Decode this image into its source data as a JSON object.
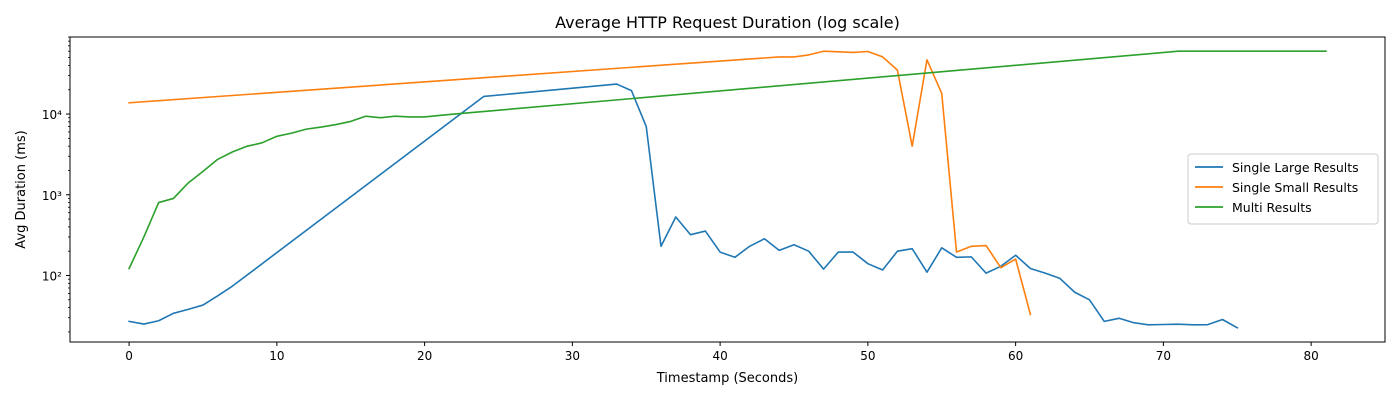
{
  "chart_data": {
    "type": "line",
    "title": "Average HTTP Request Duration (log scale)",
    "xlabel": "Timestamp (Seconds)",
    "ylabel": "Avg Duration (ms)",
    "yscale": "log",
    "xlim": [
      -4,
      85
    ],
    "ylim": [
      15,
      90000
    ],
    "xticks": [
      0,
      10,
      20,
      30,
      40,
      50,
      60,
      70,
      80
    ],
    "yticks": [
      {
        "value": 100,
        "label": "10²"
      },
      {
        "value": 1000,
        "label": "10³"
      },
      {
        "value": 10000,
        "label": "10⁴"
      }
    ],
    "grid": false,
    "legend_position": "center-right",
    "series": [
      {
        "name": "Single Large Results",
        "color": "#1f77b4",
        "points": [
          [
            0,
            27
          ],
          [
            1,
            25
          ],
          [
            2,
            27.5
          ],
          [
            3,
            34
          ],
          [
            4,
            38
          ],
          [
            5,
            43
          ],
          [
            6,
            56
          ],
          [
            7,
            74
          ],
          [
            24,
            16500
          ],
          [
            33,
            23500
          ],
          [
            34,
            19500
          ],
          [
            35,
            7000
          ],
          [
            36,
            230
          ],
          [
            37,
            530
          ],
          [
            38,
            320
          ],
          [
            39,
            355
          ],
          [
            40,
            195
          ],
          [
            41,
            168
          ],
          [
            42,
            230
          ],
          [
            43,
            285
          ],
          [
            44,
            205
          ],
          [
            45,
            240
          ],
          [
            46,
            200
          ],
          [
            47,
            120
          ],
          [
            48,
            195
          ],
          [
            49,
            195
          ],
          [
            50,
            140
          ],
          [
            51,
            117
          ],
          [
            52,
            200
          ],
          [
            53,
            215
          ],
          [
            54,
            110
          ],
          [
            55,
            220
          ],
          [
            56,
            168
          ],
          [
            57,
            170
          ],
          [
            58,
            107
          ],
          [
            59,
            130
          ],
          [
            60,
            178
          ],
          [
            61,
            122
          ],
          [
            62,
            107
          ],
          [
            63,
            92
          ],
          [
            64,
            62
          ],
          [
            65,
            50
          ],
          [
            66,
            27
          ],
          [
            67,
            29.5
          ],
          [
            68,
            26
          ],
          [
            69,
            24.5
          ],
          [
            70,
            24.7
          ],
          [
            71,
            24.9
          ],
          [
            72,
            24.5
          ],
          [
            73,
            24.6
          ],
          [
            74,
            28.5
          ],
          [
            75,
            22.5
          ]
        ]
      },
      {
        "name": "Single Small Results",
        "color": "#ff7f0e",
        "points": [
          [
            0,
            13800
          ],
          [
            44,
            51000
          ],
          [
            45,
            51000
          ],
          [
            46,
            54000
          ],
          [
            47,
            60000
          ],
          [
            48,
            59000
          ],
          [
            49,
            58000
          ],
          [
            50,
            59500
          ],
          [
            51,
            51000
          ],
          [
            52,
            35000
          ],
          [
            53,
            4000
          ],
          [
            54,
            47000
          ],
          [
            55,
            18000
          ],
          [
            56,
            195
          ],
          [
            57,
            230
          ],
          [
            58,
            235
          ],
          [
            59,
            125
          ],
          [
            60,
            160
          ],
          [
            61,
            33
          ]
        ]
      },
      {
        "name": "Multi Results",
        "color": "#2ca02c",
        "points": [
          [
            0,
            122
          ],
          [
            1,
            300
          ],
          [
            2,
            800
          ],
          [
            3,
            900
          ],
          [
            4,
            1400
          ],
          [
            5,
            1950
          ],
          [
            6,
            2750
          ],
          [
            7,
            3400
          ],
          [
            8,
            4000
          ],
          [
            9,
            4400
          ],
          [
            10,
            5300
          ],
          [
            11,
            5800
          ],
          [
            12,
            6500
          ],
          [
            13,
            6900
          ],
          [
            14,
            7400
          ],
          [
            15,
            8100
          ],
          [
            16,
            9400
          ],
          [
            17,
            9000
          ],
          [
            18,
            9400
          ],
          [
            19,
            9200
          ],
          [
            20,
            9200
          ],
          [
            21,
            9600
          ],
          [
            22,
            10000
          ],
          [
            71,
            60000
          ],
          [
            81,
            60000
          ]
        ]
      }
    ]
  }
}
